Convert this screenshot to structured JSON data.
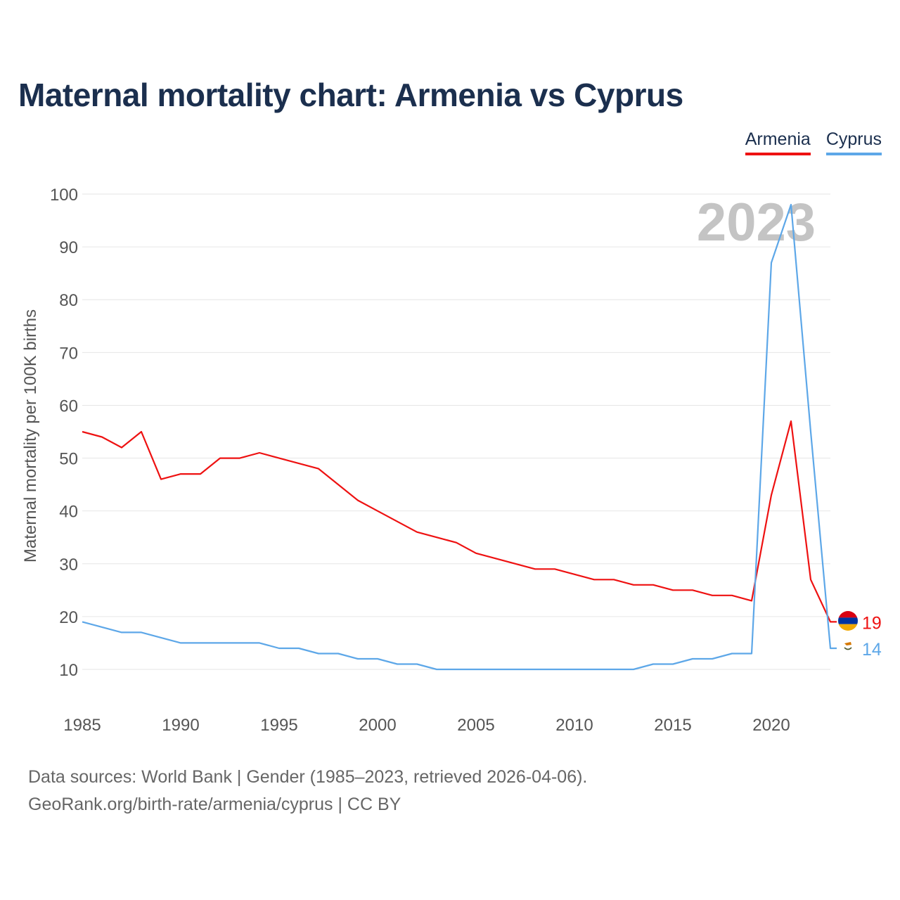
{
  "title": "Maternal mortality chart: Armenia vs Cyprus",
  "legend": {
    "armenia": "Armenia",
    "cyprus": "Cyprus"
  },
  "year_watermark": "2023",
  "footer": {
    "line1": "Data sources: World Bank | Gender (1985–2023, retrieved 2026-04-06).",
    "line2": "GeoRank.org/birth-rate/armenia/cyprus | CC BY"
  },
  "colors": {
    "armenia": "#ee1111",
    "cyprus": "#5da7e8",
    "title": "#1b2f4e"
  },
  "chart_data": {
    "type": "line",
    "title": "Maternal mortality chart: Armenia vs Cyprus",
    "ylabel": "Maternal mortality per 100K births",
    "xlabel": "",
    "xlim": [
      1985,
      2023
    ],
    "ylim": [
      0,
      100
    ],
    "x_ticks": [
      "1985",
      "1990",
      "1995",
      "2000",
      "2005",
      "2010",
      "2015",
      "2020"
    ],
    "y_ticks": [
      "10",
      "20",
      "30",
      "40",
      "50",
      "60",
      "70",
      "80",
      "90",
      "100"
    ],
    "x": [
      1985,
      1986,
      1987,
      1988,
      1989,
      1990,
      1991,
      1992,
      1993,
      1994,
      1995,
      1996,
      1997,
      1998,
      1999,
      2000,
      2001,
      2002,
      2003,
      2004,
      2005,
      2006,
      2007,
      2008,
      2009,
      2010,
      2011,
      2012,
      2013,
      2014,
      2015,
      2016,
      2017,
      2018,
      2019,
      2020,
      2021,
      2022,
      2023
    ],
    "series": [
      {
        "name": "Armenia",
        "color": "#ee1111",
        "end_label": "19",
        "values": [
          55,
          54,
          52,
          55,
          46,
          47,
          47,
          50,
          50,
          51,
          50,
          49,
          48,
          45,
          42,
          40,
          38,
          36,
          35,
          34,
          32,
          31,
          30,
          29,
          29,
          28,
          27,
          27,
          26,
          26,
          25,
          25,
          24,
          24,
          23,
          43,
          57,
          27,
          19
        ]
      },
      {
        "name": "Cyprus",
        "color": "#5da7e8",
        "end_label": "14",
        "values": [
          19,
          18,
          17,
          17,
          16,
          15,
          15,
          15,
          15,
          15,
          14,
          14,
          13,
          13,
          12,
          12,
          11,
          11,
          10,
          10,
          10,
          10,
          10,
          10,
          10,
          10,
          10,
          10,
          10,
          11,
          11,
          12,
          12,
          13,
          13,
          87,
          98,
          55,
          14
        ]
      }
    ]
  }
}
